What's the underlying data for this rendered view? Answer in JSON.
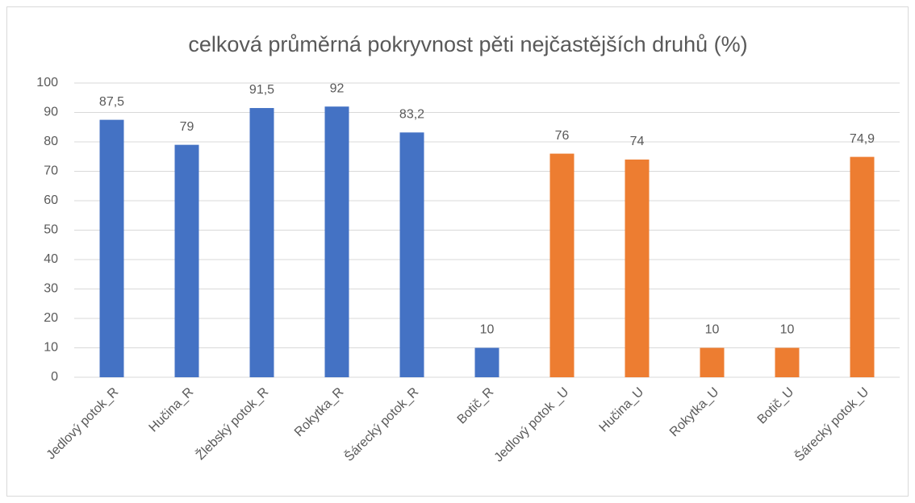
{
  "chart_data": {
    "type": "bar",
    "title": "celková průměrná pokryvnost pěti nejčastějších druhů (%)",
    "categories": [
      "Jedlový potok_R",
      "Hučina_R",
      "Žlebský potok_R",
      "Rokytka_R",
      "Šárecký potok_R",
      "Botič_R",
      "Jedlový potok _U",
      "Hučina_U",
      "Rokytka_U",
      "Botič_U",
      "Šárecký potok_U"
    ],
    "values": [
      87.5,
      79,
      91.5,
      92,
      83.2,
      10,
      76,
      74,
      10,
      10,
      74.9
    ],
    "value_labels": [
      "87,5",
      "79",
      "91,5",
      "92",
      "83,2",
      "10",
      "76",
      "74",
      "10",
      "10",
      "74,9"
    ],
    "colors": [
      "#4472c4",
      "#4472c4",
      "#4472c4",
      "#4472c4",
      "#4472c4",
      "#4472c4",
      "#ed7d31",
      "#ed7d31",
      "#ed7d31",
      "#ed7d31",
      "#ed7d31"
    ],
    "ylim": [
      0,
      100
    ],
    "yticks": [
      0,
      10,
      20,
      30,
      40,
      50,
      60,
      70,
      80,
      90,
      100
    ],
    "grid": true
  }
}
